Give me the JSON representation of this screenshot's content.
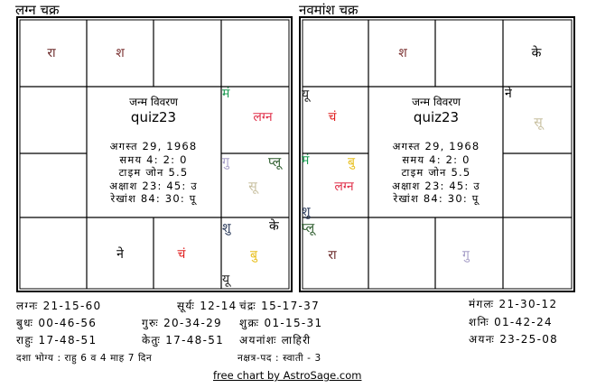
{
  "lagna_chart": {
    "title": "लग्न चक्र",
    "center": {
      "heading": "जन्म विवरण",
      "name": "quiz23",
      "date": "अगस्त 29, 1968",
      "time": "समय 4: 2: 0",
      "timezone": "टाइम जोन 5.5",
      "latitude": "अक्षाश 23: 45: उ",
      "longitude": "रेखांश 84: 30: पू"
    },
    "planets": [
      {
        "text": "रा",
        "color": "#6b2a2a"
      },
      {
        "text": "श",
        "color": "#7a3030"
      },
      {
        "text": "मं",
        "color": "#1a9a50"
      },
      {
        "text": "लग्न",
        "color": "#e0304a"
      },
      {
        "text": "गु",
        "color": "#a8a0c8"
      },
      {
        "text": "प्लू",
        "color": "#2a5a2a"
      },
      {
        "text": "सू",
        "color": "#c8c0a0"
      },
      {
        "text": "शु",
        "color": "#2a3a5a"
      },
      {
        "text": "के",
        "color": "#000000"
      },
      {
        "text": "बु",
        "color": "#e8c020"
      },
      {
        "text": "यू",
        "color": "#222222"
      },
      {
        "text": "ने",
        "color": "#000000"
      },
      {
        "text": "चं",
        "color": "#e02020"
      }
    ]
  },
  "navamsa_chart": {
    "title": "नवमांश चक्र",
    "center": {
      "heading": "जन्म विवरण",
      "name": "quiz23",
      "date": "अगस्त 29, 1968",
      "time": "समय 4: 2: 0",
      "timezone": "टाइम जोन 5.5",
      "latitude": "अक्षाश 23: 45: उ",
      "longitude": "रेखांश 84: 30: पू"
    },
    "planets": [
      {
        "text": "श",
        "color": "#7a3030"
      },
      {
        "text": "के",
        "color": "#000000"
      },
      {
        "text": "यू",
        "color": "#222222"
      },
      {
        "text": "चं",
        "color": "#e02020"
      },
      {
        "text": "ने",
        "color": "#000000"
      },
      {
        "text": "सू",
        "color": "#c8c0a0"
      },
      {
        "text": "मं",
        "color": "#1a9a50"
      },
      {
        "text": "बु",
        "color": "#e8c020"
      },
      {
        "text": "लग्न",
        "color": "#e0304a"
      },
      {
        "text": "शु",
        "color": "#2a3a5a"
      },
      {
        "text": "प्लू",
        "color": "#2a5a2a"
      },
      {
        "text": "रा",
        "color": "#6b2a2a"
      },
      {
        "text": "गु",
        "color": "#a8a0c8"
      }
    ]
  },
  "positions": {
    "lagna": "लग्नः 21-15-60",
    "surya": "सूर्यः 12-14-37",
    "chandra": "चंद्रः 15-17-37",
    "mangal": "मंगलः 21-30-12",
    "budh": "बुधः 00-46-56",
    "guru": "गुरुः 20-34-29",
    "shukra": "शुक्रः 01-15-31",
    "shani": "शनिः 01-42-24",
    "rahu": "राहुः 17-48-51",
    "ketu": "केतुः 17-48-51",
    "ayanamsa": "अयनांशः लाहिरी",
    "ayan": "अयनः 23-25-08"
  },
  "dasha": "दशा भोग्य : राहु 6 व 4 माह 7 दिन",
  "nakshatra": "नक्षत्र-पद : स्वाती - 3",
  "footer": "free chart by AstroSage.com"
}
